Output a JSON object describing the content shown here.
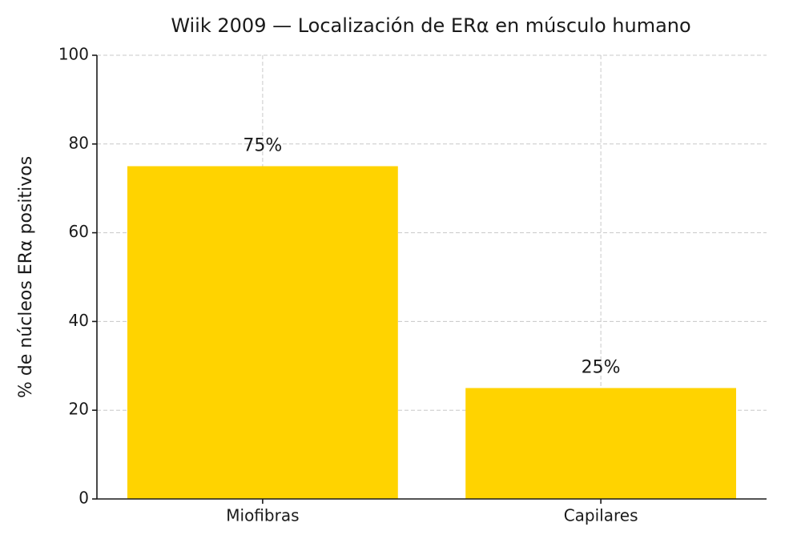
{
  "chart_data": {
    "type": "bar",
    "title": "Wiik 2009 — Localización de ERα en músculo humano",
    "ylabel": "% de núcleos ERα positivos",
    "categories": [
      "Miofibras",
      "Capilares"
    ],
    "values": [
      75,
      25
    ],
    "value_labels": [
      "75%",
      "25%"
    ],
    "color": "#ffd300",
    "ylim": [
      0,
      100
    ],
    "yticks": [
      0,
      20,
      40,
      60,
      80,
      100
    ],
    "grid": true
  }
}
